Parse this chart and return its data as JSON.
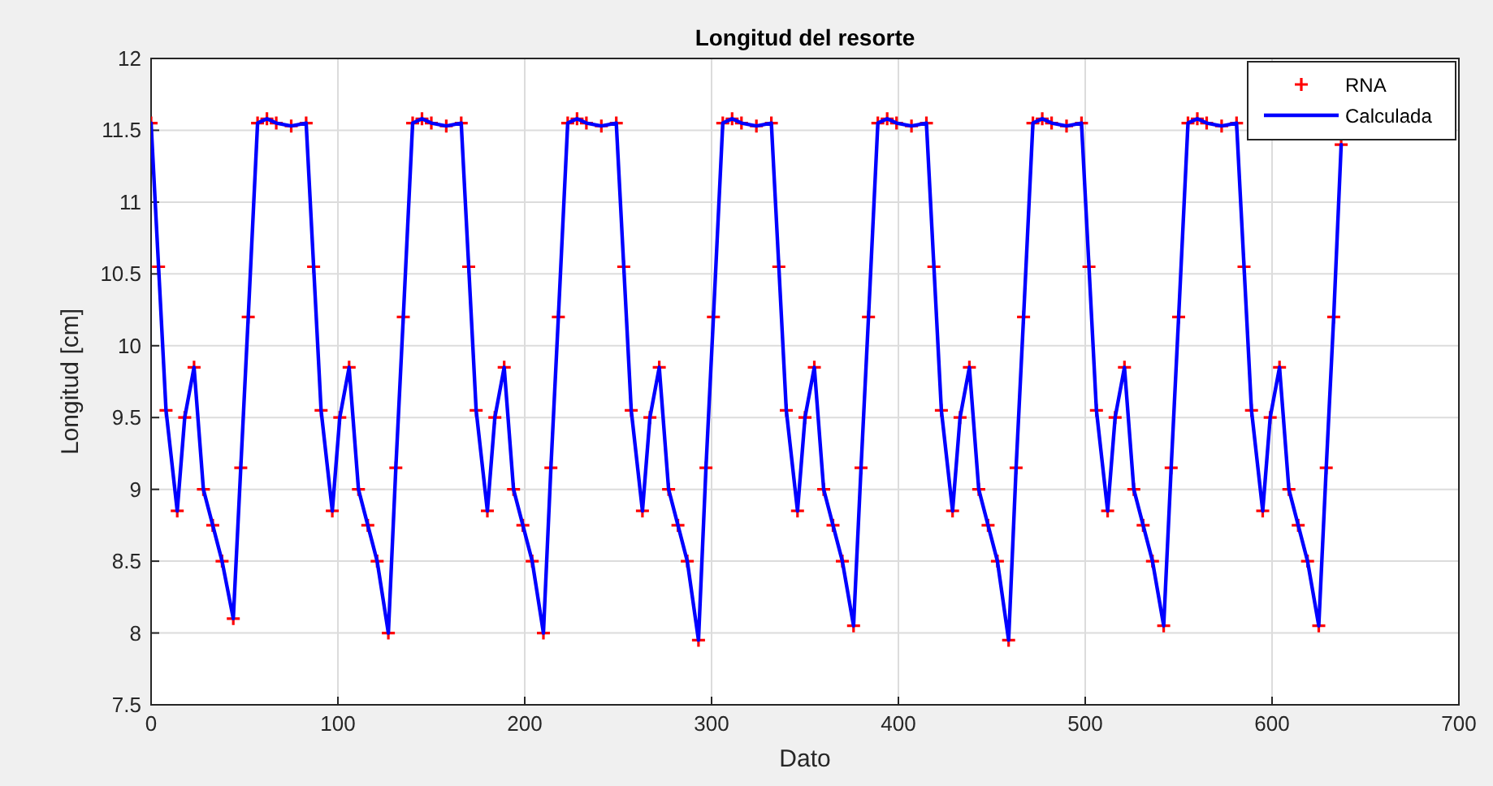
{
  "chart_data": {
    "type": "line",
    "title": "Longitud del resorte",
    "xlabel": "Dato",
    "ylabel": "Longitud [cm]",
    "xlim": [
      0,
      700
    ],
    "ylim": [
      7.5,
      12
    ],
    "xticks": [
      0,
      100,
      200,
      300,
      400,
      500,
      600,
      700
    ],
    "yticks": [
      7.5,
      8,
      8.5,
      9,
      9.5,
      10,
      10.5,
      11,
      11.5,
      12
    ],
    "grid": true,
    "legend": "top right",
    "x": [
      0,
      4,
      8,
      14,
      18,
      23,
      28,
      33,
      38,
      44,
      48,
      52,
      57,
      62,
      67,
      75,
      83,
      87,
      91,
      97,
      101,
      106,
      111,
      116,
      121,
      127,
      131,
      135,
      140,
      145,
      150,
      158,
      166,
      170,
      174,
      180,
      184,
      189,
      194,
      199,
      204,
      210,
      214,
      218,
      223,
      228,
      233,
      241,
      249,
      253,
      257,
      263,
      267,
      272,
      277,
      282,
      287,
      293,
      297,
      301,
      306,
      311,
      316,
      324,
      332,
      336,
      340,
      346,
      350,
      355,
      360,
      365,
      370,
      376,
      380,
      384,
      389,
      394,
      399,
      407,
      415,
      419,
      423,
      429,
      433,
      438,
      443,
      448,
      453,
      459,
      463,
      467,
      472,
      477,
      482,
      490,
      498,
      502,
      506,
      512,
      516,
      521,
      526,
      531,
      536,
      542,
      546,
      550,
      555,
      560,
      565,
      573,
      581,
      585,
      589,
      595,
      599,
      604,
      609,
      614,
      619,
      625,
      629,
      633,
      637
    ],
    "series": [
      {
        "name": "RNA",
        "type": "scatter",
        "marker": "cross",
        "color": "#ff0000",
        "values": [
          11.55,
          10.55,
          9.55,
          8.85,
          9.5,
          9.85,
          9.0,
          8.75,
          8.5,
          8.1,
          9.15,
          10.2,
          11.55,
          11.58,
          11.55,
          11.53,
          11.55,
          10.55,
          9.55,
          8.85,
          9.5,
          9.85,
          9.0,
          8.75,
          8.5,
          8.0,
          9.15,
          10.2,
          11.55,
          11.58,
          11.55,
          11.53,
          11.55,
          10.55,
          9.55,
          8.85,
          9.5,
          9.85,
          9.0,
          8.75,
          8.5,
          8.0,
          9.15,
          10.2,
          11.55,
          11.58,
          11.55,
          11.53,
          11.55,
          10.55,
          9.55,
          8.85,
          9.5,
          9.85,
          9.0,
          8.75,
          8.5,
          7.95,
          9.15,
          10.2,
          11.55,
          11.58,
          11.55,
          11.53,
          11.55,
          10.55,
          9.55,
          8.85,
          9.5,
          9.85,
          9.0,
          8.75,
          8.5,
          8.05,
          9.15,
          10.2,
          11.55,
          11.58,
          11.55,
          11.53,
          11.55,
          10.55,
          9.55,
          8.85,
          9.5,
          9.85,
          9.0,
          8.75,
          8.5,
          7.95,
          9.15,
          10.2,
          11.55,
          11.58,
          11.55,
          11.53,
          11.55,
          10.55,
          9.55,
          8.85,
          9.5,
          9.85,
          9.0,
          8.75,
          8.5,
          8.05,
          9.15,
          10.2,
          11.55,
          11.58,
          11.55,
          11.53,
          11.55,
          10.55,
          9.55,
          8.85,
          9.5,
          9.85,
          9.0,
          8.75,
          8.5,
          8.05,
          9.15,
          10.2,
          11.4
        ]
      },
      {
        "name": "Calculada",
        "line_style": "solid",
        "marker": "none",
        "color": "#0000ff",
        "values": [
          11.55,
          10.55,
          9.55,
          8.85,
          9.5,
          9.85,
          9.0,
          8.75,
          8.5,
          8.1,
          9.15,
          10.2,
          11.55,
          11.58,
          11.55,
          11.53,
          11.55,
          10.55,
          9.55,
          8.85,
          9.5,
          9.85,
          9.0,
          8.75,
          8.5,
          8.0,
          9.15,
          10.2,
          11.55,
          11.58,
          11.55,
          11.53,
          11.55,
          10.55,
          9.55,
          8.85,
          9.5,
          9.85,
          9.0,
          8.75,
          8.5,
          8.0,
          9.15,
          10.2,
          11.55,
          11.58,
          11.55,
          11.53,
          11.55,
          10.55,
          9.55,
          8.85,
          9.5,
          9.85,
          9.0,
          8.75,
          8.5,
          7.95,
          9.15,
          10.2,
          11.55,
          11.58,
          11.55,
          11.53,
          11.55,
          10.55,
          9.55,
          8.85,
          9.5,
          9.85,
          9.0,
          8.75,
          8.5,
          8.05,
          9.15,
          10.2,
          11.55,
          11.58,
          11.55,
          11.53,
          11.55,
          10.55,
          9.55,
          8.85,
          9.5,
          9.85,
          9.0,
          8.75,
          8.5,
          7.95,
          9.15,
          10.2,
          11.55,
          11.58,
          11.55,
          11.53,
          11.55,
          10.55,
          9.55,
          8.85,
          9.5,
          9.85,
          9.0,
          8.75,
          8.5,
          8.05,
          9.15,
          10.2,
          11.55,
          11.58,
          11.55,
          11.53,
          11.55,
          10.55,
          9.55,
          8.85,
          9.5,
          9.85,
          9.0,
          8.75,
          8.5,
          8.05,
          9.15,
          10.2,
          11.4
        ]
      }
    ]
  }
}
